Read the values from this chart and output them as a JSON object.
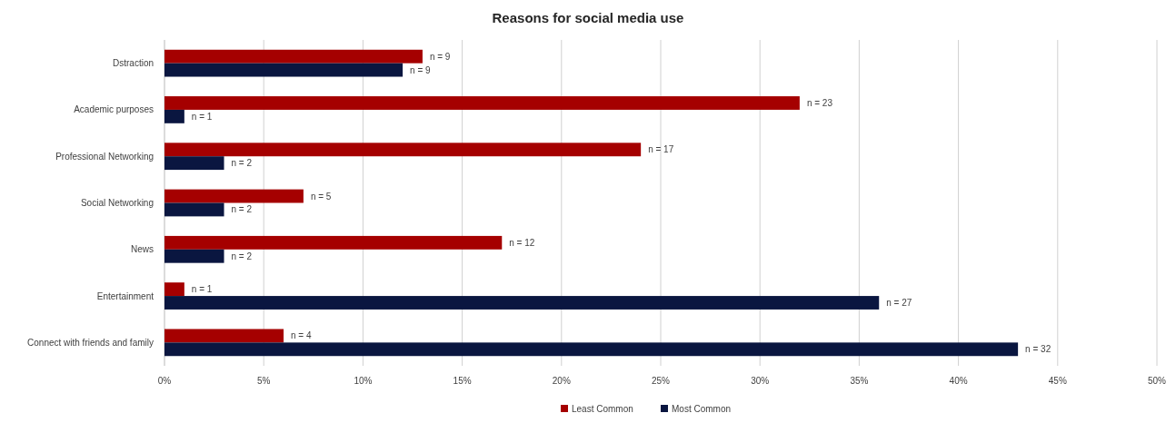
{
  "chart_data": {
    "type": "bar",
    "orientation": "horizontal",
    "title": "Reasons for social media use",
    "categories": [
      "Dstraction",
      "Academic purposes",
      "Professional Networking",
      "Social Networking",
      "News",
      "Entertainment",
      "Connect with friends and family"
    ],
    "series": [
      {
        "name": "Least Common",
        "color": "#a50000",
        "values": [
          13,
          32,
          24,
          7,
          17,
          1,
          6
        ]
      },
      {
        "name": "Most Common",
        "color": "#0a1640",
        "values": [
          12,
          1,
          3,
          3,
          3,
          36,
          43
        ]
      }
    ],
    "annotations": [
      {
        "text": "n = 9",
        "x": 13,
        "y": "Dstraction"
      },
      {
        "text": "n = 23",
        "x": 32,
        "y": "Academic purposes"
      },
      {
        "text": "n = 17",
        "x": 24,
        "y": "Professional Networking"
      },
      {
        "text": "n = 5",
        "x": 7,
        "y": "Social Networking"
      },
      {
        "text": "n = 12",
        "x": 17,
        "y": "News"
      },
      {
        "text": "n = 1",
        "x": 1,
        "y": "Entertainment"
      },
      {
        "text": "n = 4",
        "x": 6,
        "y": "Connect with friends and family"
      },
      {
        "text": "n = 9",
        "x": 12,
        "y": "Dstraction"
      },
      {
        "text": "n = 1",
        "x": 1,
        "y": "Academic purposes"
      },
      {
        "text": "n = 2",
        "x": 3,
        "y": "Professional Networking"
      },
      {
        "text": "n = 2",
        "x": 3,
        "y": "Social Networking"
      },
      {
        "text": "n = 2",
        "x": 3,
        "y": "News"
      },
      {
        "text": "n = 27",
        "x": 36,
        "y": "Entertainment"
      },
      {
        "text": "n = 32",
        "x": 43,
        "y": "Connect with friends and family"
      }
    ],
    "xlim": [
      0,
      50
    ],
    "xticks": [
      {
        "value": 0,
        "label": "0%"
      },
      {
        "value": 5,
        "label": "5%"
      },
      {
        "value": 10,
        "label": "10%"
      },
      {
        "value": 15,
        "label": "15%"
      },
      {
        "value": 20,
        "label": "20%"
      },
      {
        "value": 25,
        "label": "25%"
      },
      {
        "value": 30,
        "label": "30%"
      },
      {
        "value": 35,
        "label": "35%"
      },
      {
        "value": 40,
        "label": "40%"
      },
      {
        "value": 45,
        "label": "45%"
      },
      {
        "value": 50,
        "label": "50%"
      }
    ],
    "grid": "x",
    "legend": "bottom"
  }
}
